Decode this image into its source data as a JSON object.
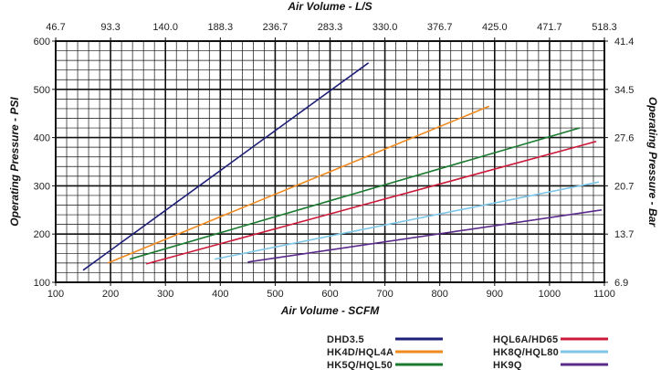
{
  "chart_data": {
    "type": "line",
    "title": "",
    "xlabel": "Air Volume - SCFM",
    "ylabel": "Operating Pressure - PSI",
    "x2label": "Air Volume - L/S",
    "y2label": "Operating Pressure - Bar",
    "xlim": [
      100,
      1100
    ],
    "ylim": [
      100,
      600
    ],
    "x_ticks": [
      100,
      200,
      300,
      400,
      500,
      600,
      700,
      800,
      900,
      1000,
      1100
    ],
    "x_tick_labels": [
      "100",
      "200",
      "300",
      "400",
      "500",
      "600",
      "700",
      "800",
      "900",
      "1000",
      "1100"
    ],
    "y_ticks": [
      100,
      200,
      300,
      400,
      500,
      600
    ],
    "y_tick_labels": [
      "100",
      "200",
      "300",
      "400",
      "500",
      "600"
    ],
    "x2_ticks": [
      100,
      200,
      300,
      400,
      500,
      600,
      700,
      800,
      900,
      1000,
      1100
    ],
    "x2_tick_labels": [
      "46.7",
      "93.3",
      "140.0",
      "188.3",
      "236.7",
      "283.3",
      "330.0",
      "376.7",
      "425.0",
      "471.7",
      "518.3"
    ],
    "y2_ticks": [
      100,
      200,
      300,
      400,
      500,
      600
    ],
    "y2_tick_labels": [
      "6.9",
      "13.7",
      "20.7",
      "27.6",
      "34.5",
      "41.4"
    ],
    "grid": true,
    "legend_position": "bottom",
    "series": [
      {
        "name": "DHD3.5",
        "color": "#1e1f78",
        "x": [
          150,
          670
        ],
        "y": [
          125,
          555
        ]
      },
      {
        "name": "HK4D/HQL4A",
        "color": "#f08a1e",
        "x": [
          195,
          890
        ],
        "y": [
          140,
          465
        ]
      },
      {
        "name": "HK5Q/HQL50",
        "color": "#1a7a2e",
        "x": [
          235,
          1055
        ],
        "y": [
          148,
          420
        ]
      },
      {
        "name": "HQL6A/HD65",
        "color": "#cc1a3a",
        "x": [
          265,
          1085
        ],
        "y": [
          138,
          392
        ]
      },
      {
        "name": "HK8Q/HQL80",
        "color": "#7ec6e8",
        "x": [
          390,
          1090
        ],
        "y": [
          148,
          308
        ]
      },
      {
        "name": "HK9Q",
        "color": "#5a2a8a",
        "x": [
          450,
          1095
        ],
        "y": [
          142,
          250
        ]
      }
    ]
  }
}
